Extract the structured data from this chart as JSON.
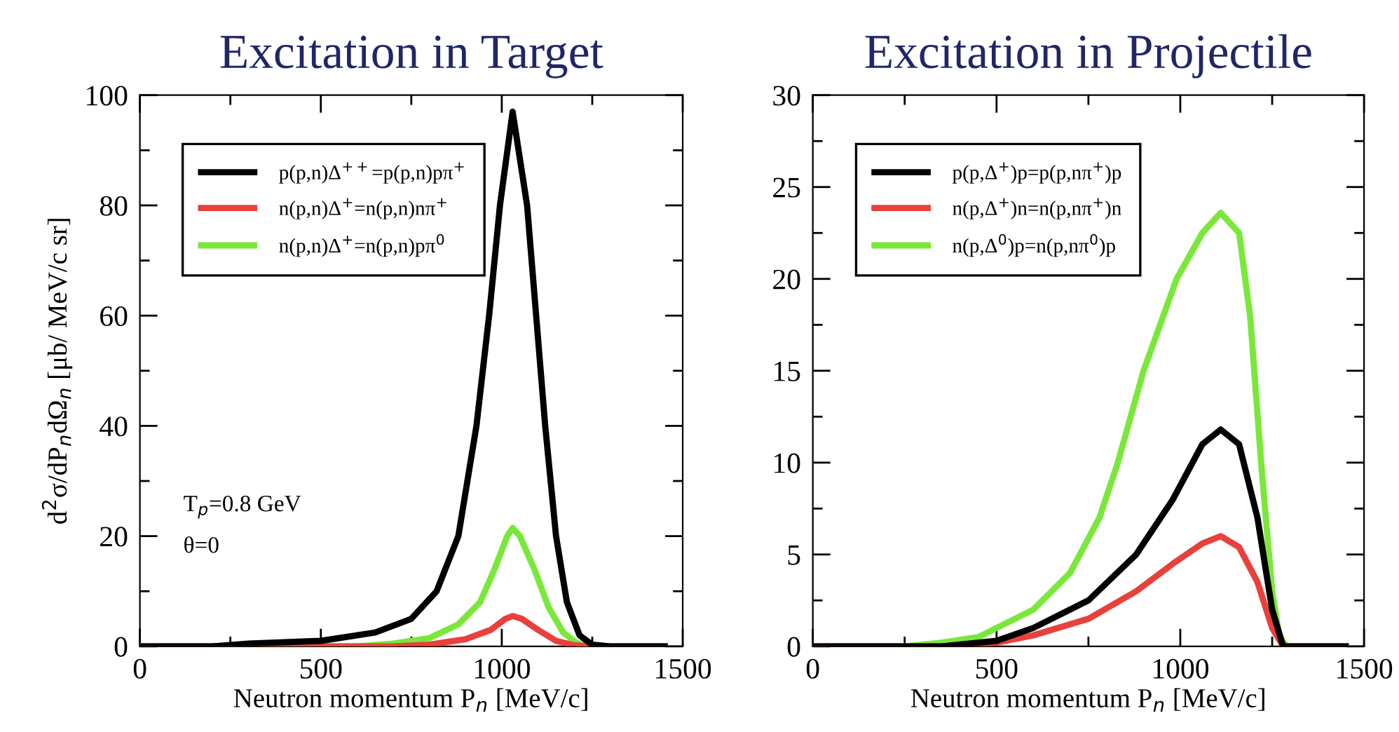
{
  "chart_data": [
    {
      "type": "line",
      "title": "Excitation in Target",
      "xlabel": "Neutron momentum P$_{n}$ [MeV/c]",
      "ylabel": "d$^{2}$σ/dP$_{n}$dΩ$_{n}$ [μb/ MeV/c sr]",
      "xlim": [
        0,
        1500
      ],
      "xticks": [
        0,
        500,
        1000,
        1500
      ],
      "ylim": [
        0,
        100
      ],
      "yticks": [
        0,
        20,
        40,
        60,
        80,
        100
      ],
      "grid": false,
      "legend": "top left",
      "line_style": "solid",
      "marker": "none",
      "annotations": [
        "T$_{p}$=0.8 GeV",
        "θ=0"
      ],
      "series": [
        {
          "name": "p(p,n)Δ$^{++}$=p(p,n)pπ$^{+}$",
          "color": "#000000",
          "x": [
            0,
            200,
            300,
            500,
            650,
            750,
            820,
            880,
            930,
            965,
            995,
            1030,
            1070,
            1095,
            1120,
            1150,
            1180,
            1215,
            1250,
            1300,
            1450
          ],
          "values": [
            0,
            0,
            0.5,
            1,
            2.5,
            5,
            10,
            20,
            40,
            60,
            80,
            97,
            80,
            60,
            40,
            20,
            8,
            2,
            0.3,
            0,
            0
          ]
        },
        {
          "name": "n(p,n)Δ$^{+}$=n(p,n)nπ$^{+}$",
          "color": "#e8413c",
          "x": [
            0,
            700,
            800,
            900,
            970,
            1010,
            1030,
            1055,
            1100,
            1150,
            1200,
            1240,
            1450
          ],
          "values": [
            0,
            0,
            0.3,
            1.3,
            3,
            5,
            5.5,
            5,
            3,
            1,
            0.2,
            0,
            0
          ]
        },
        {
          "name": "n(p,n)Δ$^{+}$=n(p,n)pπ$^{0}$",
          "color": "#7ae83a",
          "x": [
            0,
            600,
            700,
            800,
            880,
            940,
            980,
            1015,
            1030,
            1050,
            1090,
            1130,
            1170,
            1210,
            1250,
            1450
          ],
          "values": [
            0,
            0,
            0.5,
            1.5,
            4,
            8,
            14,
            20,
            21.5,
            20,
            14,
            7,
            2.5,
            0.5,
            0,
            0
          ]
        }
      ]
    },
    {
      "type": "line",
      "title": "Excitation in Projectile",
      "xlabel": "Neutron momentum P$_{n}$ [MeV/c]",
      "xlim": [
        0,
        1500
      ],
      "xticks": [
        0,
        500,
        1000,
        1500
      ],
      "ylim": [
        0,
        30
      ],
      "yticks": [
        0,
        5,
        10,
        15,
        20,
        25,
        30
      ],
      "grid": false,
      "legend": "top left",
      "line_style": "solid",
      "marker": "none",
      "series": [
        {
          "name": "p(p,Δ$^{+}$)p=p(p,nπ$^{+}$)p",
          "color": "#000000",
          "x": [
            0,
            350,
            500,
            600,
            750,
            880,
            980,
            1060,
            1110,
            1160,
            1210,
            1250,
            1280,
            1450
          ],
          "values": [
            0,
            0,
            0.3,
            1,
            2.5,
            5,
            8,
            11,
            11.8,
            11,
            7,
            2,
            0,
            0
          ]
        },
        {
          "name": "n(p,Δ$^{+}$)n=n(p,nπ$^{+}$)n",
          "color": "#e8413c",
          "x": [
            0,
            400,
            500,
            600,
            750,
            880,
            980,
            1060,
            1110,
            1160,
            1210,
            1250,
            1280,
            1450
          ],
          "values": [
            0,
            0,
            0.2,
            0.6,
            1.5,
            3,
            4.5,
            5.6,
            6,
            5.4,
            3.5,
            1,
            0,
            0
          ]
        },
        {
          "name": "n(p,Δ$^{0}$)p=n(p,nπ$^{0}$)p",
          "color": "#7ae83a",
          "x": [
            0,
            250,
            350,
            450,
            500,
            600,
            700,
            780,
            830,
            900,
            990,
            1060,
            1110,
            1160,
            1190,
            1220,
            1250,
            1270,
            1290,
            1450
          ],
          "values": [
            0,
            0,
            0.2,
            0.5,
            1,
            2,
            4,
            7,
            10,
            15,
            20,
            22.5,
            23.6,
            22.5,
            18,
            10,
            3,
            0.5,
            0,
            0
          ]
        }
      ]
    }
  ]
}
